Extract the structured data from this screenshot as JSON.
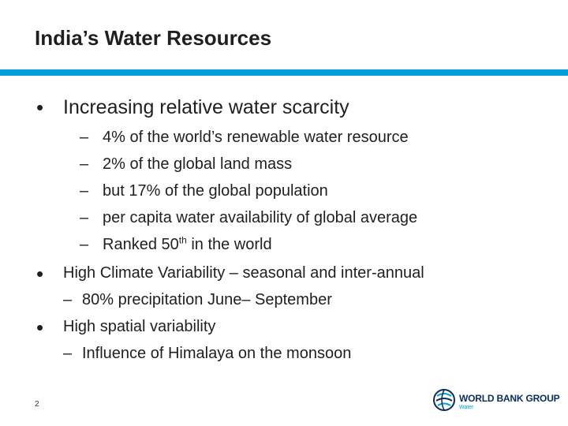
{
  "slide": {
    "title": "India’s Water Resources",
    "page_number": "2"
  },
  "bullets": [
    {
      "marker": "•",
      "text": "Increasing relative water scarcity",
      "sub": [
        {
          "marker": "–",
          "text": "4% of the world’s renewable water resource"
        },
        {
          "marker": "–",
          "text": "2% of the global land mass"
        },
        {
          "marker": "–",
          "text": "but 17% of the global population"
        },
        {
          "marker": "–",
          "text": "per capita water availability of global average"
        },
        {
          "marker": "–",
          "text_before": "Ranked 50",
          "sup": "th",
          "text_after": " in the world"
        }
      ]
    },
    {
      "marker": "•",
      "text": "High Climate Variability – seasonal and inter-annual",
      "sub": [
        {
          "marker": "–",
          "text": "80% precipitation June– September"
        }
      ]
    },
    {
      "marker": "•",
      "text": "High spatial variability",
      "sub": [
        {
          "marker": "–",
          "text": "Influence of Himalaya on the monsoon"
        }
      ]
    }
  ],
  "logo": {
    "name": "WORLD BANK GROUP",
    "subtitle": "Water",
    "icon": "world-bank-globe-icon",
    "color_primary": "#0a2d5a",
    "color_accent": "#009fda"
  },
  "accent_color": "#009fda"
}
